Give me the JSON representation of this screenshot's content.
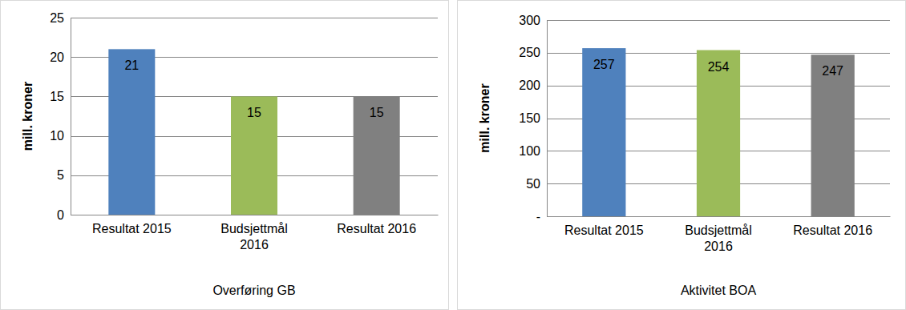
{
  "chart_data": [
    {
      "type": "bar",
      "title": "Overføring GB",
      "y_label": "mill. kroner",
      "categories": [
        "Resultat 2015",
        "Budsjettmål 2016",
        "Resultat 2016"
      ],
      "values": [
        21,
        15,
        15
      ],
      "colors": [
        "#4f81bd",
        "#9bbb59",
        "#808080"
      ],
      "ylim": [
        0,
        25
      ],
      "yticks": [
        0,
        5,
        10,
        15,
        20,
        25
      ],
      "grid": true,
      "data_labels": true
    },
    {
      "type": "bar",
      "title": "Aktivitet BOA",
      "y_label": "mill. kroner",
      "categories": [
        "Resultat 2015",
        "Budsjettmål 2016",
        "Resultat 2016"
      ],
      "values": [
        257,
        254,
        247
      ],
      "colors": [
        "#4f81bd",
        "#9bbb59",
        "#808080"
      ],
      "ylim": [
        0,
        300
      ],
      "yticks": [
        {
          "value": 0,
          "label": "-"
        },
        50,
        100,
        150,
        200,
        250,
        300
      ],
      "grid": true,
      "data_labels": true
    }
  ]
}
